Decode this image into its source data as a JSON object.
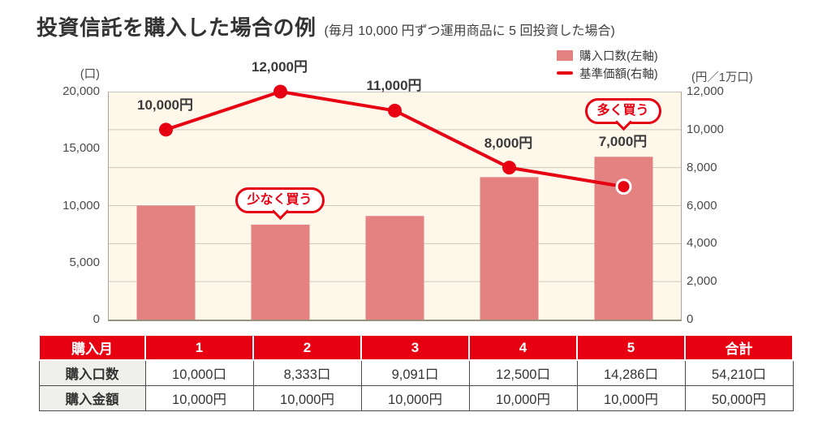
{
  "title": "投資信託を購入した場合の例",
  "subtitle": "(毎月 10,000 円ずつ運用商品に 5 回投資した場合)",
  "chart_data": {
    "type": "bar",
    "categories": [
      "1",
      "2",
      "3",
      "4",
      "5"
    ],
    "series": [
      {
        "name": "購入口数(左軸)",
        "kind": "bar",
        "axis": "left",
        "color": "#e48181",
        "values": [
          10000,
          8333,
          9091,
          12500,
          14286
        ]
      },
      {
        "name": "基準価額(右軸)",
        "kind": "line",
        "axis": "right",
        "color": "#e60012",
        "values": [
          10000,
          12000,
          11000,
          8000,
          7000
        ]
      }
    ],
    "left_axis": {
      "label": "(口)",
      "min": 0,
      "max": 20000,
      "ticks": [
        "20,000",
        "15,000",
        "10,000",
        "5,000",
        "0"
      ]
    },
    "right_axis": {
      "label": "(円／1万口)",
      "min": 0,
      "max": 12000,
      "ticks": [
        "12,000",
        "10,000",
        "8,000",
        "6,000",
        "4,000",
        "2,000",
        "0"
      ]
    },
    "point_labels": [
      "10,000円",
      "12,000円",
      "11,000円",
      "8,000円",
      "7,000円"
    ],
    "annotations": [
      {
        "text": "少なく買う",
        "target_month": 2,
        "position": "above-bar"
      },
      {
        "text": "多く買う",
        "target_month": 5,
        "position": "above-label"
      }
    ],
    "grid": true,
    "legend_position": "top-right"
  },
  "table": {
    "header": [
      "購入月",
      "1",
      "2",
      "3",
      "4",
      "5",
      "合計"
    ],
    "rows": [
      {
        "label": "購入口数",
        "values": [
          "10,000口",
          "8,333口",
          "9,091口",
          "12,500口",
          "14,286口",
          "54,210口"
        ]
      },
      {
        "label": "購入金額",
        "values": [
          "10,000円",
          "10,000円",
          "10,000円",
          "10,000円",
          "10,000円",
          "50,000円"
        ]
      }
    ]
  },
  "colors": {
    "accent_red": "#e60012",
    "bar_pink": "#e48181",
    "plot_background": "#fdf8ea",
    "grid_line": "#ccc8bc",
    "title_text": "#333333"
  }
}
